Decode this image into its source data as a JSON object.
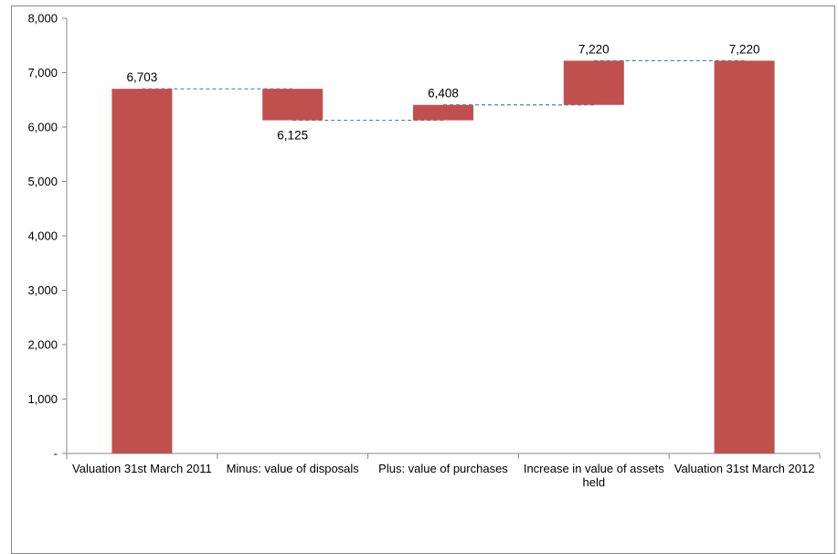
{
  "chart_data": {
    "type": "waterfall",
    "title": "",
    "xlabel": "",
    "ylabel": "",
    "ylim": [
      0,
      8000
    ],
    "yticks": [
      {
        "value": 0,
        "label": "-"
      },
      {
        "value": 1000,
        "label": "1,000"
      },
      {
        "value": 2000,
        "label": "2,000"
      },
      {
        "value": 3000,
        "label": "3,000"
      },
      {
        "value": 4000,
        "label": "4,000"
      },
      {
        "value": 5000,
        "label": "5,000"
      },
      {
        "value": 6000,
        "label": "6,000"
      },
      {
        "value": 7000,
        "label": "7,000"
      },
      {
        "value": 8000,
        "label": "8,000"
      }
    ],
    "grid": false,
    "legend": "none",
    "bar_color": "#c0504d",
    "connector_color": "#4f81bd",
    "categories": [
      [
        "Valuation 31st March 2011"
      ],
      [
        "Minus: value of disposals"
      ],
      [
        "Plus: value of purchases"
      ],
      [
        "Increase in value of assets",
        "held"
      ],
      [
        "Valuation 31st March 2012"
      ]
    ],
    "bars": [
      {
        "base": 0,
        "top": 6703,
        "label": "6,703",
        "label_pos": "above"
      },
      {
        "base": 6125,
        "top": 6703,
        "label": "6,125",
        "label_pos": "below"
      },
      {
        "base": 6125,
        "top": 6408,
        "label": "6,408",
        "label_pos": "above"
      },
      {
        "base": 6408,
        "top": 7220,
        "label": "7,220",
        "label_pos": "above"
      },
      {
        "base": 0,
        "top": 7220,
        "label": "7,220",
        "label_pos": "above"
      }
    ],
    "connectors": [
      {
        "from": 0,
        "to": 1,
        "value": 6703
      },
      {
        "from": 1,
        "to": 2,
        "value": 6125
      },
      {
        "from": 2,
        "to": 3,
        "value": 6408
      },
      {
        "from": 3,
        "to": 4,
        "value": 7220
      }
    ]
  }
}
